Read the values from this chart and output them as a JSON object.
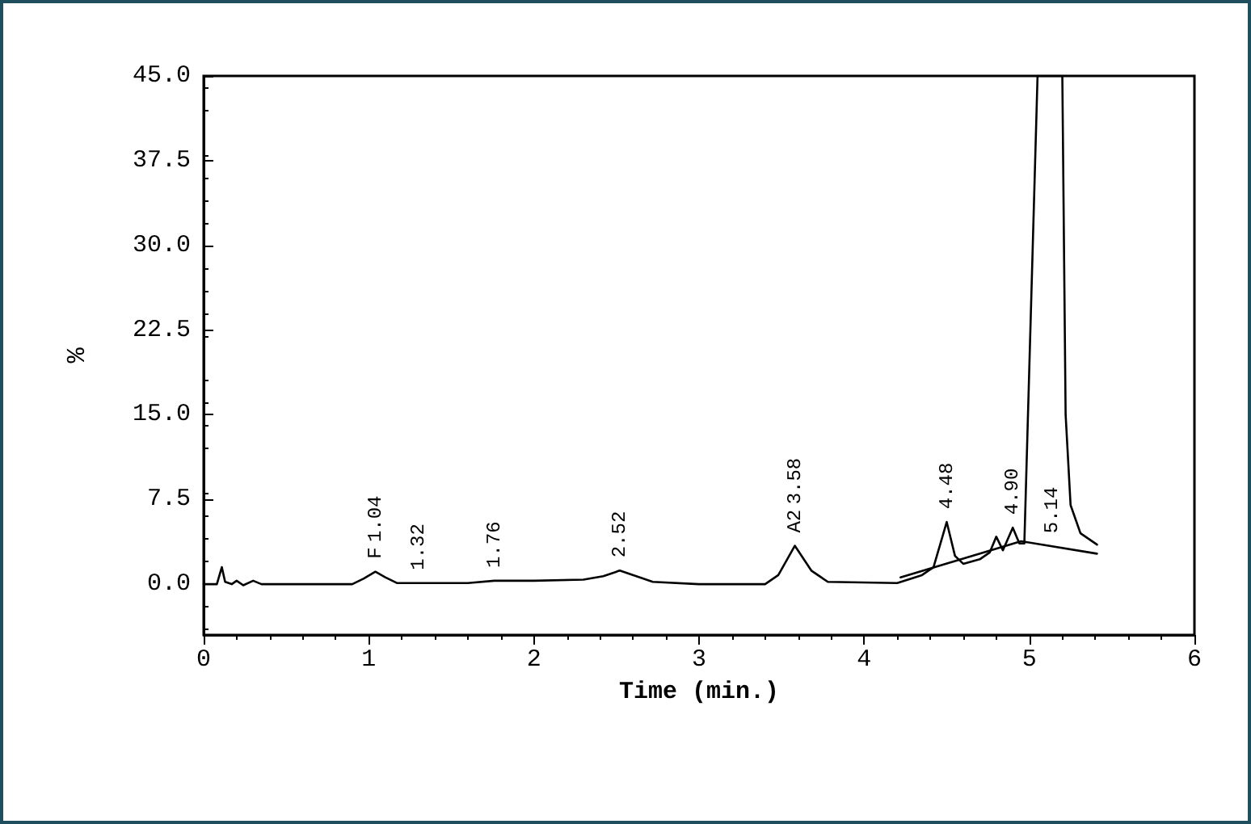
{
  "chart_data": {
    "type": "line",
    "xlabel": "Time (min.)",
    "ylabel": "%",
    "xlim": [
      0,
      6
    ],
    "xticks": [
      0,
      1,
      2,
      3,
      4,
      5,
      6
    ],
    "ylim": [
      -4.5,
      45
    ],
    "yticks": [
      {
        "value": 0,
        "label": "0.0"
      },
      7.5,
      {
        "value": 15,
        "label": "15.0"
      },
      22.5,
      {
        "value": 30,
        "label": "30.0"
      },
      37.5,
      {
        "value": 45,
        "label": "45.0"
      }
    ],
    "grid": false,
    "marker": "none",
    "line_style": "solid",
    "series": [
      {
        "color": "#000000",
        "x": [
          0,
          0.08,
          0.11,
          0.13,
          0.17,
          0.2,
          0.24,
          0.3,
          0.35,
          0.9,
          0.97,
          1.04,
          1.1,
          1.17,
          1.3,
          1.6,
          1.76,
          2.0,
          2.3,
          2.42,
          2.52,
          2.62,
          2.72,
          3.0,
          3.4,
          3.48,
          3.58,
          3.68,
          3.78,
          4.2,
          4.35,
          4.42,
          4.5,
          4.55,
          4.6,
          4.7,
          4.76,
          4.8,
          4.84,
          4.9,
          4.94,
          4.97,
          5.05,
          5.2,
          5.22,
          5.25,
          5.31,
          5.41
        ],
        "values": [
          0,
          0,
          1.5,
          0.2,
          0,
          0.3,
          -0.1,
          0.3,
          0,
          0,
          0.5,
          1.1,
          0.6,
          0.1,
          0.1,
          0.1,
          0.3,
          0.3,
          0.4,
          0.7,
          1.2,
          0.7,
          0.2,
          0,
          0,
          0.8,
          3.4,
          1.2,
          0.2,
          0.1,
          0.8,
          1.5,
          5.5,
          2.5,
          1.8,
          2.2,
          2.8,
          4.2,
          3.0,
          5.0,
          3.6,
          3.6,
          45,
          45,
          15,
          7,
          4.5,
          3.5
        ]
      },
      {
        "color": "#000000",
        "x": [
          4.22,
          4.95,
          5.41
        ],
        "values": [
          0.6,
          3.8,
          2.7
        ]
      }
    ],
    "annotations": [
      {
        "text": "F",
        "x": 1.04,
        "y": 1.1
      },
      {
        "text": "1.04",
        "x": 1.04,
        "y": 1.1
      },
      {
        "text": "1.32",
        "x": 1.3,
        "y": 0.1
      },
      {
        "text": "1.76",
        "x": 1.76,
        "y": 0.3
      },
      {
        "text": "2.52",
        "x": 2.52,
        "y": 1.2
      },
      {
        "text": "A2",
        "x": 3.58,
        "y": 3.4
      },
      {
        "text": "3.58",
        "x": 3.58,
        "y": 3.4
      },
      {
        "text": "4.48",
        "x": 4.5,
        "y": 5.5
      },
      {
        "text": "4.90",
        "x": 4.9,
        "y": 5.0
      },
      {
        "text": "5.14",
        "x": 5.14,
        "y": 3.35
      }
    ]
  }
}
